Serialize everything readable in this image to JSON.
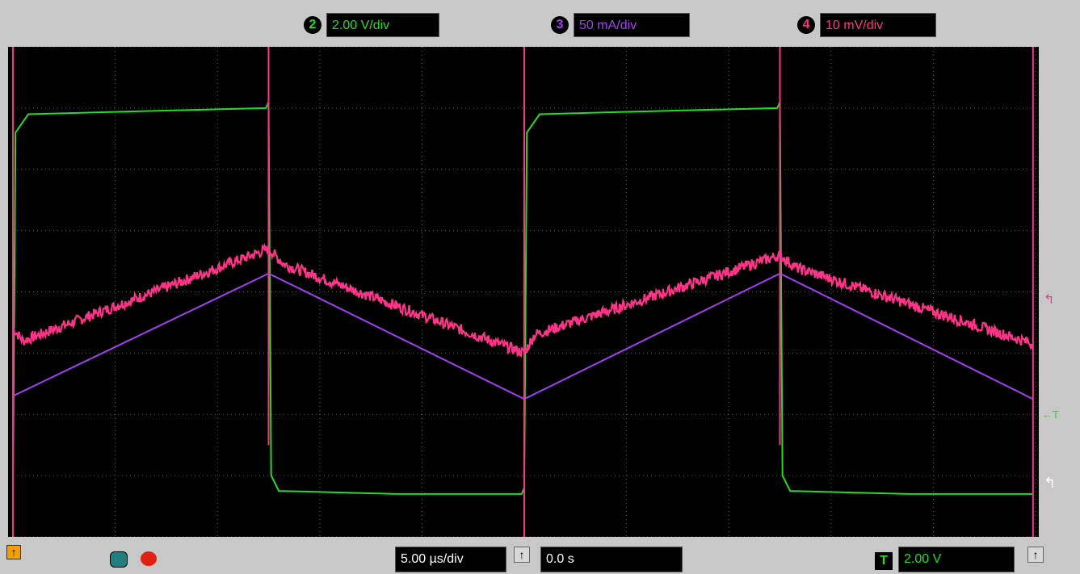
{
  "channels": [
    {
      "num": "2",
      "scale": "2.00 V/div",
      "color": "#22dd22"
    },
    {
      "num": "3",
      "scale": "50 mA/div",
      "color": "#a040f0"
    },
    {
      "num": "4",
      "scale": "10 mV/div",
      "color": "#ff3388"
    }
  ],
  "bottom": {
    "timebase": "5.00 µs/div",
    "position": "0.0 s",
    "trigger_source": "T",
    "trigger_level": "2.00 V",
    "arrow": "↑"
  },
  "markers": {
    "trigger_level": "←T",
    "ch2_ref": "↰",
    "ch3_ref": "↰"
  },
  "chart_data": {
    "type": "line",
    "x_divisions": 10,
    "y_divisions": 8,
    "grid": true,
    "period_div": 5,
    "series": [
      {
        "id": "ch2",
        "x": [
          0.0,
          0.05,
          0.3,
          2.5,
          4.95,
          5.0,
          5.05,
          5.2,
          7.5,
          9.95,
          10.0,
          10.05,
          10.3,
          12.5,
          14.95,
          15.0,
          15.05,
          15.2,
          17.5,
          19.95
        ],
        "y": [
          -3.2,
          2.6,
          2.9,
          2.95,
          3.0,
          3.1,
          -3.0,
          -3.25,
          -3.3,
          -3.3,
          -3.2,
          2.6,
          2.9,
          2.95,
          3.0,
          3.1,
          -3.0,
          -3.25,
          -3.3,
          -3.3
        ]
      },
      {
        "id": "ch3",
        "x": [
          0.0,
          5.0,
          10.0,
          15.0,
          19.95
        ],
        "y": [
          -1.7,
          0.3,
          -1.75,
          0.3,
          -1.75
        ]
      },
      {
        "id": "ch4",
        "x": [
          0.0,
          0.2,
          5.0,
          5.3,
          10.0,
          10.2,
          15.0,
          15.3,
          19.95
        ],
        "y": [
          -0.6,
          -0.8,
          0.7,
          0.45,
          -1.0,
          -0.7,
          0.6,
          0.4,
          -0.85
        ]
      }
    ]
  }
}
